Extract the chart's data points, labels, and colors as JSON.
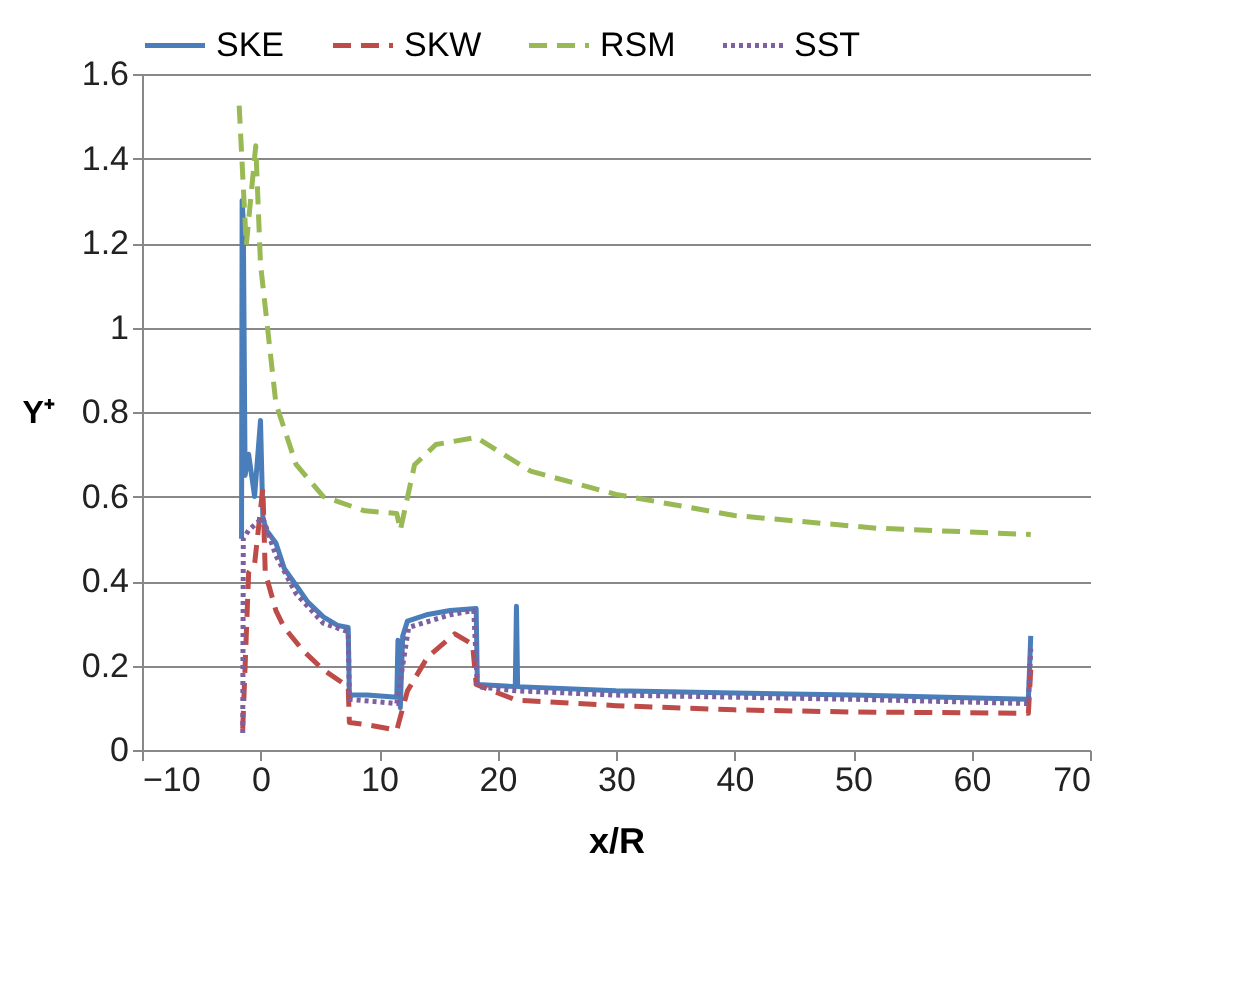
{
  "chart_data": {
    "type": "line",
    "xlabel": "x/R",
    "ylabel": "Y⁺",
    "xlim": [
      -10,
      70
    ],
    "xticks": [
      -10,
      0,
      10,
      20,
      30,
      40,
      50,
      60,
      70
    ],
    "ylim": [
      0,
      1.6
    ],
    "yticks": [
      0,
      0.2,
      0.4,
      0.6,
      0.8,
      1,
      1.2,
      1.4,
      1.6
    ],
    "grid": "y",
    "legend": "top",
    "marker": "none",
    "series": [
      {
        "name": "SKE",
        "color": "#4a7ebb",
        "line_style": "solid",
        "x": [
          -1.6,
          -1.55,
          -1.45,
          -1.3,
          -1,
          -0.5,
          0,
          0.2,
          0.5,
          1.3,
          2,
          3,
          4,
          5.3,
          6.5,
          7.4,
          7.5,
          9,
          11.5,
          11.6,
          11.8,
          12,
          12.4,
          14,
          16,
          18.2,
          18.3,
          21.5,
          21.6,
          21.7,
          30,
          40,
          50,
          64.8,
          65
        ],
        "values": [
          0.5,
          1.3,
          1.25,
          0.65,
          0.7,
          0.6,
          0.78,
          0.55,
          0.52,
          0.49,
          0.43,
          0.39,
          0.35,
          0.315,
          0.295,
          0.29,
          0.13,
          0.13,
          0.125,
          0.26,
          0.1,
          0.27,
          0.305,
          0.32,
          0.33,
          0.335,
          0.155,
          0.15,
          0.34,
          0.15,
          0.14,
          0.135,
          0.13,
          0.12,
          0.27
        ]
      },
      {
        "name": "SKW",
        "color": "#be4b48",
        "line_style": "dashed",
        "x": [
          -1.5,
          -1,
          -0.5,
          0.2,
          0.4,
          1.3,
          2,
          3.6,
          5.3,
          7.4,
          7.5,
          9,
          11.5,
          12.4,
          14.1,
          16.4,
          17.9,
          18.2,
          21.6,
          30,
          40,
          50,
          64.8,
          65
        ],
        "values": [
          0.05,
          0.42,
          0.44,
          0.62,
          0.42,
          0.33,
          0.29,
          0.235,
          0.19,
          0.15,
          0.065,
          0.06,
          0.047,
          0.14,
          0.22,
          0.275,
          0.25,
          0.155,
          0.118,
          0.105,
          0.095,
          0.09,
          0.087,
          0.19
        ]
      },
      {
        "name": "RSM",
        "color": "#98b954",
        "line_style": "dashed",
        "x": [
          -1.8,
          -1.2,
          -0.4,
          0,
          1.3,
          3,
          5.3,
          8.8,
          11.5,
          11.8,
          13,
          14.8,
          18.2,
          22.8,
          30,
          40,
          52,
          65
        ],
        "values": [
          1.525,
          1.195,
          1.43,
          1.15,
          0.82,
          0.676,
          0.6,
          0.566,
          0.56,
          0.52,
          0.675,
          0.723,
          0.74,
          0.66,
          0.605,
          0.555,
          0.525,
          0.51
        ]
      },
      {
        "name": "SST",
        "color": "#7d60a0",
        "line_style": "dotted",
        "x": [
          -1.5,
          -1.45,
          -1,
          0.2,
          1.3,
          3,
          5.3,
          7.4,
          7.5,
          11.5,
          12.5,
          16,
          18,
          18.3,
          21.6,
          30,
          50,
          64.8,
          65
        ],
        "values": [
          0.04,
          0.5,
          0.52,
          0.55,
          0.46,
          0.37,
          0.3,
          0.28,
          0.12,
          0.11,
          0.29,
          0.32,
          0.33,
          0.15,
          0.14,
          0.13,
          0.12,
          0.11,
          0.24
        ]
      }
    ]
  }
}
